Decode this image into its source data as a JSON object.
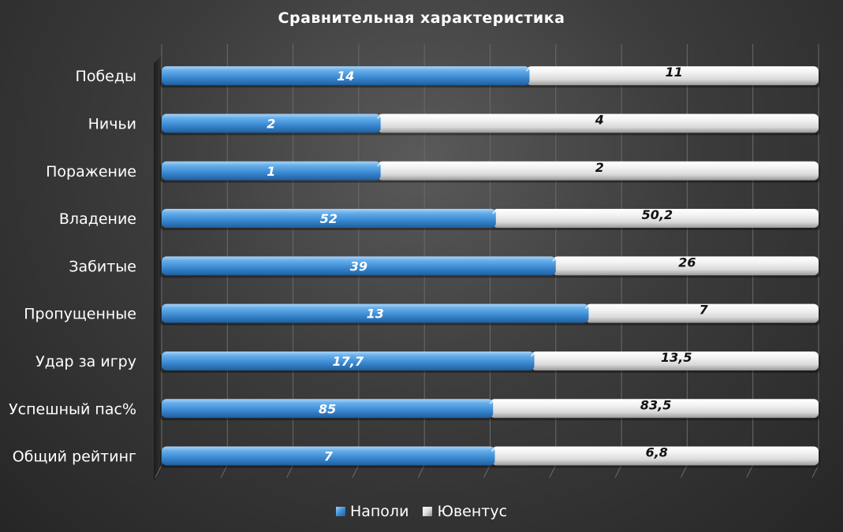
{
  "chart_data": {
    "type": "bar",
    "orientation": "horizontal",
    "stacked": "percent",
    "title": "Сравнительная характеристика",
    "categories": [
      "Победы",
      "Ничьи",
      "Поражение",
      "Владение",
      "Забитые",
      "Пропущенные",
      "Удар за игру",
      "Успешный пас%",
      "Общий рейтинг"
    ],
    "series": [
      {
        "name": "Наполи",
        "color": "#3d8fd6",
        "values": [
          14,
          2,
          1,
          52,
          39,
          13,
          17.7,
          85,
          7
        ],
        "labels": [
          "14",
          "2",
          "1",
          "52",
          "39",
          "13",
          "17,7",
          "85",
          "7"
        ]
      },
      {
        "name": "Ювентус",
        "color": "#e4e4e4",
        "values": [
          11,
          4,
          2,
          50.2,
          26,
          7,
          13.5,
          83.5,
          6.8
        ],
        "labels": [
          "11",
          "4",
          "2",
          "50,2",
          "26",
          "7",
          "13,5",
          "83,5",
          "6,8"
        ]
      }
    ],
    "xlim": [
      0,
      100
    ],
    "grid": true,
    "legend_position": "bottom"
  }
}
